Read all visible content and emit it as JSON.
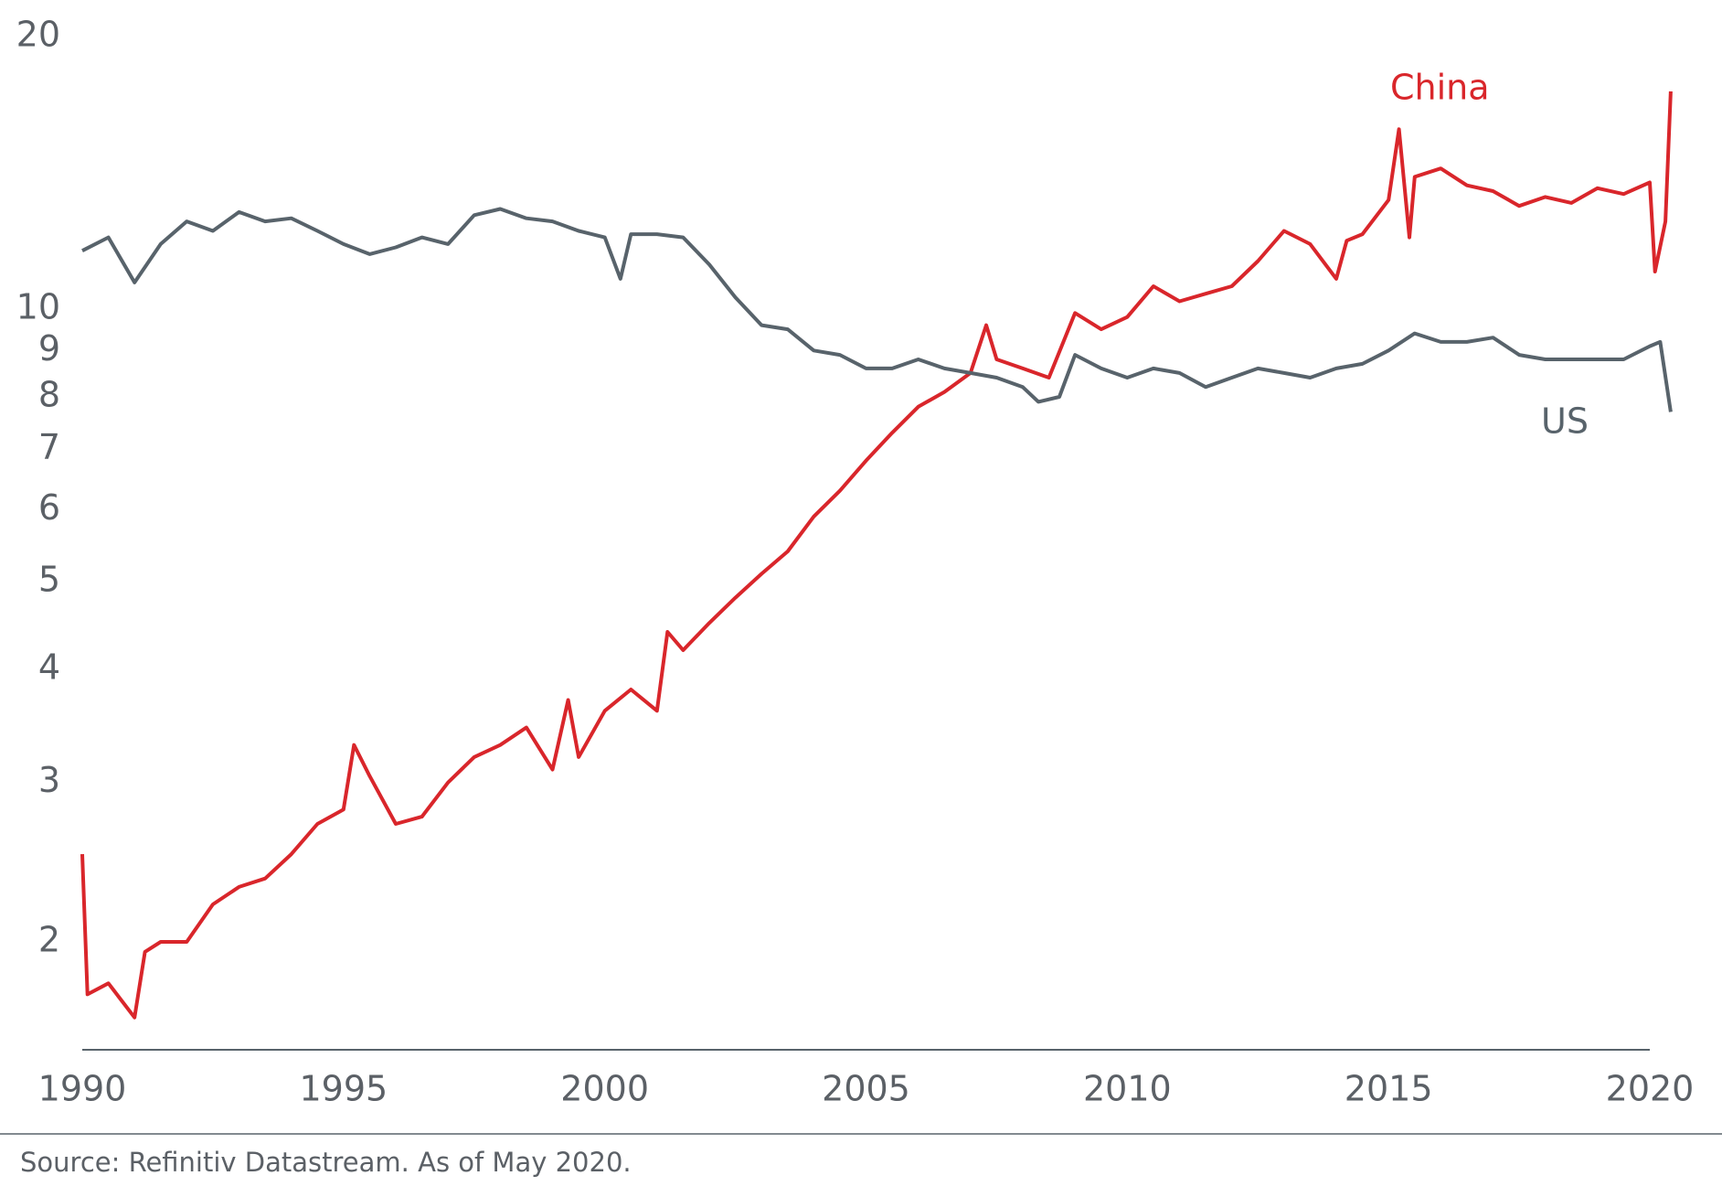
{
  "chart_data": {
    "type": "line",
    "yscale": "log",
    "grid": false,
    "xlim": [
      1990,
      2020
    ],
    "xticks": [
      1990,
      1995,
      2000,
      2005,
      2010,
      2015,
      2020
    ],
    "ylim": [
      1.52,
      20
    ],
    "yticks": [
      2,
      3,
      4,
      5,
      6,
      7,
      8,
      9,
      10,
      20
    ],
    "series": [
      {
        "name": "China",
        "color": "#d9262b",
        "x": [
          1990,
          1990.1,
          1990.5,
          1991,
          1991.2,
          1991.5,
          1992,
          1992.5,
          1993,
          1993.5,
          1994,
          1994.5,
          1995,
          1995.2,
          1995.5,
          1996,
          1996.5,
          1997,
          1997.5,
          1998,
          1998.5,
          1999,
          1999.3,
          1999.5,
          2000,
          2000.5,
          2001,
          2001.2,
          2001.5,
          2002,
          2002.5,
          2003,
          2003.5,
          2004,
          2004.5,
          2005,
          2005.5,
          2006,
          2006.5,
          2007,
          2007.3,
          2007.5,
          2008,
          2008.5,
          2009,
          2009.5,
          2010,
          2010.5,
          2011,
          2011.5,
          2012,
          2012.5,
          2013,
          2013.5,
          2014,
          2014.2,
          2014.5,
          2015,
          2015.2,
          2015.4,
          2015.5,
          2016,
          2016.5,
          2017,
          2017.5,
          2018,
          2018.5,
          2019,
          2019.5,
          2020,
          2020.1,
          2020.3,
          2020.4
        ],
        "values": [
          2.5,
          1.75,
          1.8,
          1.65,
          1.95,
          2.0,
          2.0,
          2.2,
          2.3,
          2.35,
          2.5,
          2.7,
          2.8,
          3.3,
          3.05,
          2.7,
          2.75,
          3.0,
          3.2,
          3.3,
          3.45,
          3.1,
          3.7,
          3.2,
          3.6,
          3.8,
          3.6,
          4.4,
          4.2,
          4.5,
          4.8,
          5.1,
          5.4,
          5.9,
          6.3,
          6.8,
          7.3,
          7.8,
          8.1,
          8.5,
          9.6,
          8.8,
          8.6,
          8.4,
          9.9,
          9.5,
          9.8,
          10.6,
          10.2,
          10.4,
          10.6,
          11.3,
          12.2,
          11.8,
          10.8,
          11.9,
          12.1,
          13.2,
          15.8,
          12.0,
          14.0,
          14.3,
          13.7,
          13.5,
          13.0,
          13.3,
          13.1,
          13.6,
          13.4,
          13.8,
          11.0,
          12.5,
          17.4
        ]
      },
      {
        "name": "US",
        "color": "#58636b",
        "x": [
          1990,
          1990.5,
          1991,
          1991.5,
          1992,
          1992.5,
          1993,
          1993.5,
          1994,
          1994.5,
          1995,
          1995.5,
          1996,
          1996.5,
          1997,
          1997.5,
          1998,
          1998.5,
          1999,
          1999.5,
          2000,
          2000.3,
          2000.5,
          2001,
          2001.5,
          2002,
          2002.5,
          2003,
          2003.5,
          2004,
          2004.5,
          2005,
          2005.5,
          2006,
          2006.5,
          2007,
          2007.5,
          2008,
          2008.3,
          2008.7,
          2009,
          2009.5,
          2010,
          2010.5,
          2011,
          2011.5,
          2012,
          2012.5,
          2013,
          2013.5,
          2014,
          2014.5,
          2015,
          2015.5,
          2016,
          2016.5,
          2017,
          2017.5,
          2018,
          2018.5,
          2019,
          2019.5,
          2020,
          2020.2,
          2020.4
        ],
        "values": [
          11.6,
          12.0,
          10.7,
          11.8,
          12.5,
          12.2,
          12.8,
          12.5,
          12.6,
          12.2,
          11.8,
          11.5,
          11.7,
          12.0,
          11.8,
          12.7,
          12.9,
          12.6,
          12.5,
          12.2,
          12.0,
          10.8,
          12.1,
          12.1,
          12.0,
          11.2,
          10.3,
          9.6,
          9.5,
          9.0,
          8.9,
          8.6,
          8.6,
          8.8,
          8.6,
          8.5,
          8.4,
          8.2,
          7.9,
          8.0,
          8.9,
          8.6,
          8.4,
          8.6,
          8.5,
          8.2,
          8.4,
          8.6,
          8.5,
          8.4,
          8.6,
          8.7,
          9.0,
          9.4,
          9.2,
          9.2,
          9.3,
          8.9,
          8.8,
          8.8,
          8.8,
          8.8,
          9.1,
          9.2,
          7.7
        ]
      }
    ],
    "source": "Source: Refinitiv Datastream. As of May 2020."
  }
}
